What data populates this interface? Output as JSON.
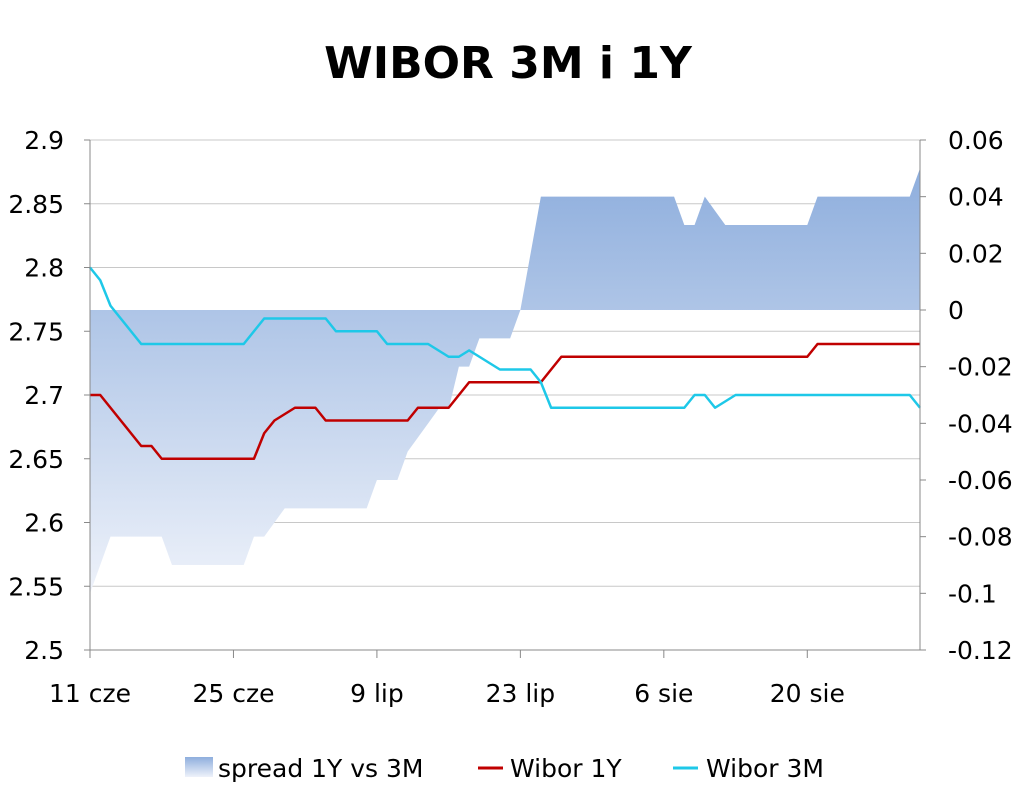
{
  "chart_data": {
    "type": "line",
    "title": "WIBOR 3M i 1Y",
    "x_tick_labels": [
      "11 cze",
      "25 cze",
      "9 lip",
      "23 lip",
      "6 sie",
      "20 sie"
    ],
    "x_tick_days": [
      0,
      14,
      28,
      42,
      56,
      70
    ],
    "x_range_days": [
      0,
      81
    ],
    "left_axis": {
      "ylim": [
        2.5,
        2.9
      ],
      "ticks": [
        2.5,
        2.55,
        2.6,
        2.65,
        2.7,
        2.75,
        2.8,
        2.85,
        2.9
      ],
      "tick_labels": [
        "2.5",
        "2.55",
        "2.6",
        "2.65",
        "2.7",
        "2.75",
        "2.8",
        "2.85",
        "2.9"
      ]
    },
    "right_axis": {
      "ylim": [
        -0.12,
        0.06
      ],
      "ticks": [
        -0.12,
        -0.1,
        -0.08,
        -0.06,
        -0.04,
        -0.02,
        0,
        0.02,
        0.04,
        0.06
      ],
      "tick_labels": [
        "-0.12",
        "-0.1",
        "-0.08",
        "-0.06",
        "-0.04",
        "-0.02",
        "0",
        "0.02",
        "0.04",
        "0.06"
      ]
    },
    "grid": true,
    "legend_position": "bottom",
    "series": [
      {
        "name": "spread 1Y vs 3M",
        "kind": "area",
        "axis": "right",
        "color": "#8eaedd",
        "days": [
          0,
          1,
          2,
          3,
          4,
          5,
          6,
          7,
          8,
          9,
          10,
          11,
          12,
          13,
          14,
          15,
          16,
          17,
          18,
          19,
          20,
          21,
          22,
          23,
          24,
          25,
          26,
          27,
          28,
          29,
          30,
          31,
          32,
          33,
          34,
          35,
          36,
          37,
          38,
          39,
          40,
          41,
          42,
          43,
          44,
          45,
          46,
          47,
          48,
          49,
          50,
          51,
          52,
          53,
          54,
          55,
          56,
          57,
          58,
          59,
          60,
          61,
          62,
          63,
          64,
          65,
          66,
          67,
          68,
          69,
          70,
          71,
          72,
          73,
          74,
          75,
          76,
          77,
          78,
          79,
          80,
          81
        ],
        "values": [
          -0.1,
          -0.09,
          -0.08,
          -0.08,
          -0.08,
          -0.08,
          -0.08,
          -0.08,
          -0.09,
          -0.09,
          -0.09,
          -0.09,
          -0.09,
          -0.09,
          -0.09,
          -0.09,
          -0.08,
          -0.08,
          -0.075,
          -0.07,
          -0.07,
          -0.07,
          -0.07,
          -0.07,
          -0.07,
          -0.07,
          -0.07,
          -0.07,
          -0.06,
          -0.06,
          -0.06,
          -0.05,
          -0.045,
          -0.04,
          -0.035,
          -0.035,
          -0.02,
          -0.02,
          -0.01,
          -0.01,
          -0.01,
          -0.01,
          0,
          0.02,
          0.04,
          0.04,
          0.04,
          0.04,
          0.04,
          0.04,
          0.04,
          0.04,
          0.04,
          0.04,
          0.04,
          0.04,
          0.04,
          0.04,
          0.03,
          0.03,
          0.04,
          0.035,
          0.03,
          0.03,
          0.03,
          0.03,
          0.03,
          0.03,
          0.03,
          0.03,
          0.03,
          0.04,
          0.04,
          0.04,
          0.04,
          0.04,
          0.04,
          0.04,
          0.04,
          0.04,
          0.04,
          0.05
        ]
      },
      {
        "name": "Wibor 1Y",
        "kind": "line",
        "axis": "left",
        "color": "#c00000",
        "days": [
          0,
          1,
          2,
          3,
          4,
          5,
          6,
          7,
          8,
          9,
          10,
          11,
          12,
          13,
          14,
          15,
          16,
          17,
          18,
          19,
          20,
          21,
          22,
          23,
          24,
          25,
          26,
          27,
          28,
          29,
          30,
          31,
          32,
          33,
          34,
          35,
          36,
          37,
          38,
          39,
          40,
          41,
          42,
          43,
          44,
          45,
          46,
          47,
          48,
          49,
          50,
          51,
          52,
          53,
          54,
          55,
          56,
          57,
          58,
          59,
          60,
          61,
          62,
          63,
          64,
          65,
          66,
          67,
          68,
          69,
          70,
          71,
          72,
          73,
          74,
          75,
          76,
          77,
          78,
          79,
          80,
          81
        ],
        "values": [
          2.7,
          2.7,
          2.69,
          2.68,
          2.67,
          2.66,
          2.66,
          2.65,
          2.65,
          2.65,
          2.65,
          2.65,
          2.65,
          2.65,
          2.65,
          2.65,
          2.65,
          2.67,
          2.68,
          2.685,
          2.69,
          2.69,
          2.69,
          2.68,
          2.68,
          2.68,
          2.68,
          2.68,
          2.68,
          2.68,
          2.68,
          2.68,
          2.69,
          2.69,
          2.69,
          2.69,
          2.7,
          2.71,
          2.71,
          2.71,
          2.71,
          2.71,
          2.71,
          2.71,
          2.71,
          2.72,
          2.73,
          2.73,
          2.73,
          2.73,
          2.73,
          2.73,
          2.73,
          2.73,
          2.73,
          2.73,
          2.73,
          2.73,
          2.73,
          2.73,
          2.73,
          2.73,
          2.73,
          2.73,
          2.73,
          2.73,
          2.73,
          2.73,
          2.73,
          2.73,
          2.73,
          2.74,
          2.74,
          2.74,
          2.74,
          2.74,
          2.74,
          2.74,
          2.74,
          2.74,
          2.74,
          2.74
        ]
      },
      {
        "name": "Wibor 3M",
        "kind": "line",
        "axis": "left",
        "color": "#1ec8e8",
        "days": [
          0,
          1,
          2,
          3,
          4,
          5,
          6,
          7,
          8,
          9,
          10,
          11,
          12,
          13,
          14,
          15,
          16,
          17,
          18,
          19,
          20,
          21,
          22,
          23,
          24,
          25,
          26,
          27,
          28,
          29,
          30,
          31,
          32,
          33,
          34,
          35,
          36,
          37,
          38,
          39,
          40,
          41,
          42,
          43,
          44,
          45,
          46,
          47,
          48,
          49,
          50,
          51,
          52,
          53,
          54,
          55,
          56,
          57,
          58,
          59,
          60,
          61,
          62,
          63,
          64,
          65,
          66,
          67,
          68,
          69,
          70,
          71,
          72,
          73,
          74,
          75,
          76,
          77,
          78,
          79,
          80,
          81
        ],
        "values": [
          2.8,
          2.79,
          2.77,
          2.76,
          2.75,
          2.74,
          2.74,
          2.74,
          2.74,
          2.74,
          2.74,
          2.74,
          2.74,
          2.74,
          2.74,
          2.74,
          2.75,
          2.76,
          2.76,
          2.76,
          2.76,
          2.76,
          2.76,
          2.76,
          2.75,
          2.75,
          2.75,
          2.75,
          2.75,
          2.74,
          2.74,
          2.74,
          2.74,
          2.74,
          2.735,
          2.73,
          2.73,
          2.735,
          2.73,
          2.725,
          2.72,
          2.72,
          2.72,
          2.72,
          2.71,
          2.69,
          2.69,
          2.69,
          2.69,
          2.69,
          2.69,
          2.69,
          2.69,
          2.69,
          2.69,
          2.69,
          2.69,
          2.69,
          2.69,
          2.7,
          2.7,
          2.69,
          2.695,
          2.7,
          2.7,
          2.7,
          2.7,
          2.7,
          2.7,
          2.7,
          2.7,
          2.7,
          2.7,
          2.7,
          2.7,
          2.7,
          2.7,
          2.7,
          2.7,
          2.7,
          2.7,
          2.69
        ]
      }
    ]
  }
}
